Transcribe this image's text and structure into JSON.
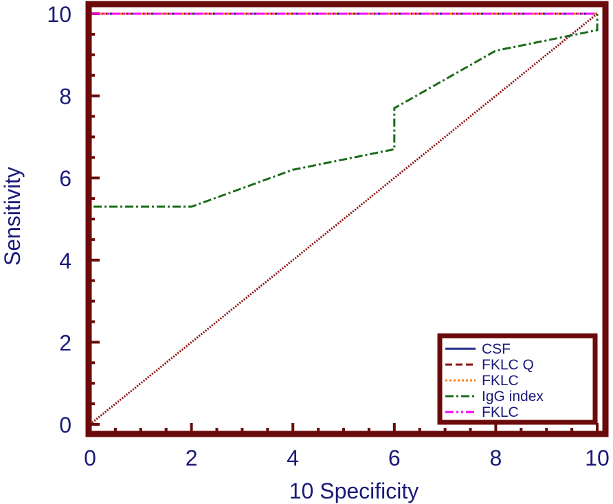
{
  "chart_data": {
    "type": "line",
    "xlabel": "10 Specificity",
    "ylabel": "Sensitivity",
    "xlim": [
      0,
      10
    ],
    "ylim": [
      0,
      10
    ],
    "xticks": [
      "0",
      "2",
      "4",
      "6",
      "8",
      "10"
    ],
    "yticks": [
      "0",
      "2",
      "4",
      "6",
      "8",
      "10"
    ],
    "grid": false,
    "legend_position": "bottom-right",
    "colors": {
      "frame": "#6b0a0a",
      "text": "#1a1a7a"
    },
    "series": [
      {
        "name": "CSF",
        "color": "#1f2a8a",
        "dash": "solid",
        "x": [
          0,
          0,
          10
        ],
        "y": [
          0,
          10,
          10
        ]
      },
      {
        "name": "FKLC Q",
        "color": "#8b1010",
        "dash": "dashed",
        "x": [
          0,
          0,
          10
        ],
        "y": [
          0,
          10,
          10
        ]
      },
      {
        "name": "FKLC",
        "color": "#ff7f0e",
        "dash": "dotted",
        "x": [
          0,
          0,
          10
        ],
        "y": [
          0,
          10,
          10
        ]
      },
      {
        "name": "IgG index",
        "color": "#1a6b1a",
        "dash": "dashdot",
        "x": [
          0,
          0,
          2,
          4,
          6,
          6,
          8,
          10,
          10
        ],
        "y": [
          0,
          5.3,
          5.3,
          6.2,
          6.7,
          7.7,
          9.1,
          9.6,
          10
        ]
      },
      {
        "name": "FKLC",
        "color": "#ff00ff",
        "dash": "dashdotdot",
        "x": [
          0,
          0,
          10
        ],
        "y": [
          0,
          10,
          10
        ]
      }
    ],
    "reference_line": {
      "color": "#8b1010",
      "x": [
        0,
        10
      ],
      "y": [
        0,
        10
      ]
    }
  }
}
